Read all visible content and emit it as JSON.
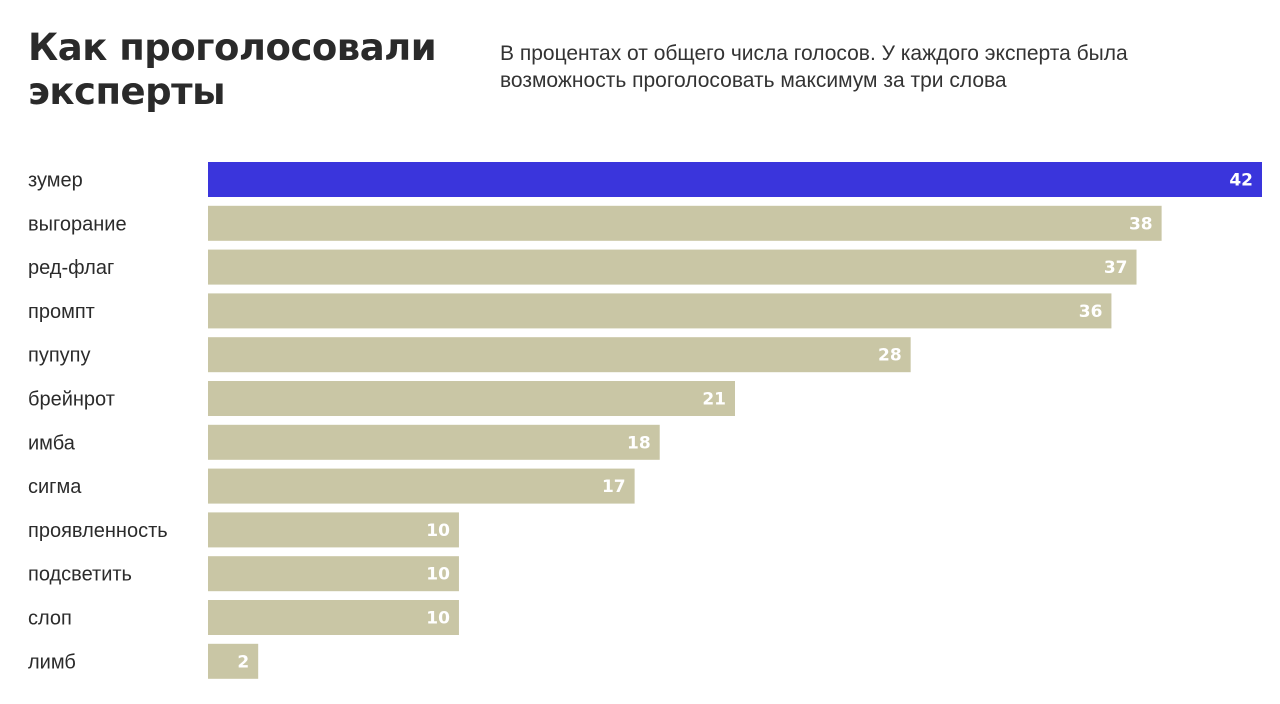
{
  "chart_data": {
    "type": "bar",
    "orientation": "horizontal",
    "title": "Как проголосовали эксперты",
    "subtitle": "В процентах от общего числа голосов. У каждого эксперта была возможность проголосовать максимум за три слова",
    "categories": [
      "зумер",
      "выгорание",
      "ред-флаг",
      "промпт",
      "пупупу",
      "брейнрот",
      "имба",
      "сигма",
      "проявленность",
      "подсветить",
      "слоп",
      "лимб"
    ],
    "values": [
      42,
      38,
      37,
      36,
      28,
      21,
      18,
      17,
      10,
      10,
      10,
      2
    ],
    "value_labels": [
      "42",
      "38",
      "37",
      "36",
      "28",
      "21",
      "18",
      "17",
      "10",
      "10",
      "10",
      "2"
    ],
    "xlim": [
      0,
      42
    ],
    "grid": false,
    "legend": "none",
    "highlight_index": 0,
    "colors": {
      "highlight": "#3a35dc",
      "bar": "#c9c6a5",
      "value_text": "#ffffff"
    }
  }
}
